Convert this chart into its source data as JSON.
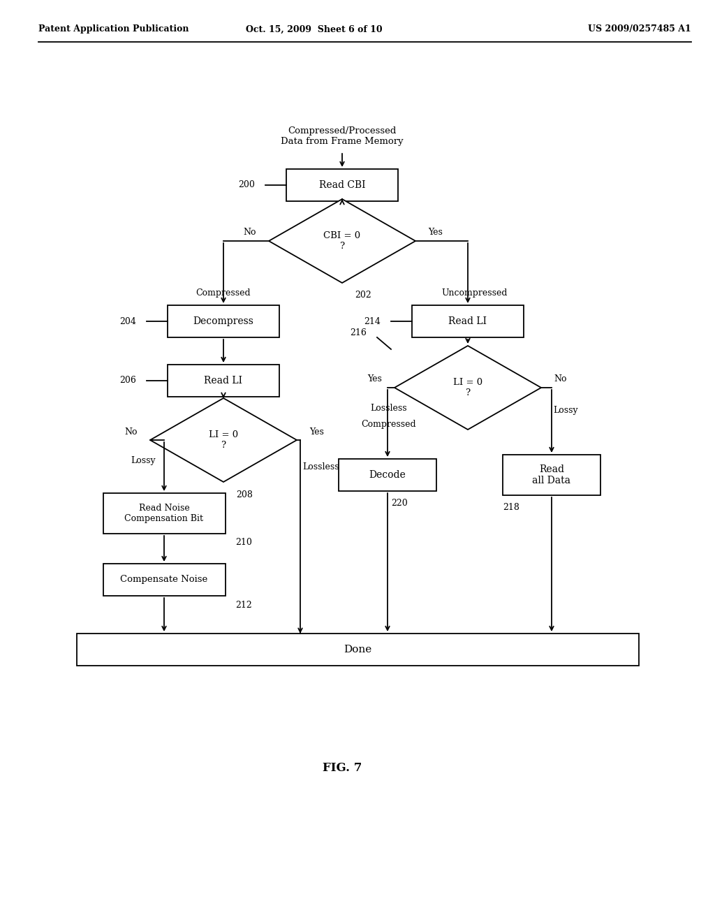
{
  "bg_color": "#ffffff",
  "header_left": "Patent Application Publication",
  "header_center": "Oct. 15, 2009  Sheet 6 of 10",
  "header_right": "US 2009/0257485 A1",
  "figure_label": "FIG. 7"
}
